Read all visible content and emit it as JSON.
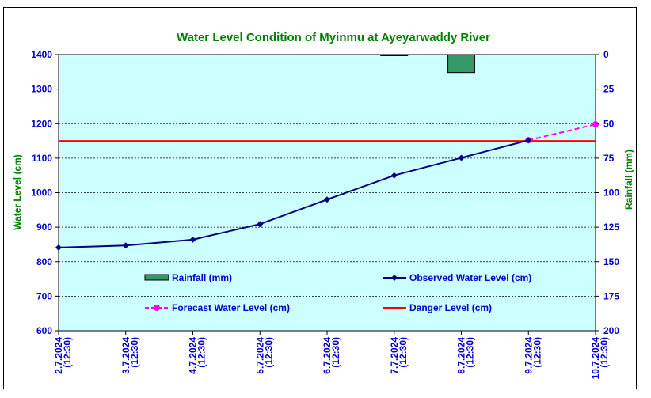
{
  "chart_data": {
    "type": "line",
    "title": "Water Level Condition of Myinmu at Ayeyarwaddy River",
    "ylabel": "Water Level (cm)",
    "y2label": "Rainfall (mm)",
    "ylim": [
      600,
      1400
    ],
    "y2lim": [
      0,
      200
    ],
    "y2_inverted": true,
    "yticks": [
      "600",
      "700",
      "800",
      "900",
      "1000",
      "1100",
      "1200",
      "1300",
      "1400"
    ],
    "y2ticks": [
      "0",
      "25",
      "50",
      "75",
      "100",
      "125",
      "150",
      "175",
      "200"
    ],
    "categories": [
      [
        "2.7.2024",
        "(12:30)"
      ],
      [
        "3.7.2024",
        "(12:30)"
      ],
      [
        "4.7.2024",
        "(12:30)"
      ],
      [
        "5.7.2024",
        "(12:30)"
      ],
      [
        "6.7.2024",
        "(12:30)"
      ],
      [
        "7.7.2024",
        "(12:30)"
      ],
      [
        "8.7.2024",
        "(12:30)"
      ],
      [
        "9.7.2024",
        "(12:30)"
      ],
      [
        "10.7.2024",
        "(12:30)"
      ]
    ],
    "series": [
      {
        "name": "Rainfall (mm)",
        "kind": "bar",
        "axis": "right",
        "color": "#339966",
        "values": [
          null,
          null,
          null,
          null,
          null,
          0.5,
          13,
          null,
          null
        ]
      },
      {
        "name": "Observed Water Level (cm)",
        "kind": "line",
        "axis": "left",
        "color": "#000080",
        "values": [
          841,
          847,
          864,
          909,
          980,
          1050,
          1101,
          1152,
          null
        ]
      },
      {
        "name": "Forecast Water Level (cm)",
        "kind": "dashed-line",
        "axis": "left",
        "color": "#ff00ff",
        "values": [
          null,
          null,
          null,
          null,
          null,
          null,
          null,
          1152,
          1198
        ]
      },
      {
        "name": "Danger Level (cm)",
        "kind": "hline",
        "axis": "left",
        "color": "#ff0000",
        "value": 1150
      }
    ],
    "grid": true,
    "plot_background": "#ccffff",
    "title_color": "#008000",
    "tick_color": "#0000cc",
    "legend_placement": "inside-bottom"
  }
}
